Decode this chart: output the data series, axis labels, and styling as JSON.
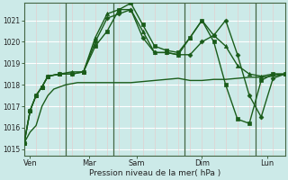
{
  "background_color": "#cceae8",
  "grid_color_white": "#ffffff",
  "grid_color_pink": "#e8c8c8",
  "line_color": "#1a5c1a",
  "xlabel": "Pression niveau de la mer( hPa )",
  "ylim": [
    1014.7,
    1021.8
  ],
  "yticks": [
    1015,
    1016,
    1017,
    1018,
    1019,
    1020,
    1021
  ],
  "xlim": [
    0,
    22
  ],
  "xtick_labels": [
    "Ven",
    "Mar",
    "Sam",
    "Dim",
    "Lun"
  ],
  "xtick_positions": [
    0.5,
    5.5,
    9.5,
    15.0,
    20.5
  ],
  "vline_positions": [
    3.5,
    7.5,
    13.5,
    19.5
  ],
  "lines": [
    {
      "x": [
        0,
        0.5,
        1,
        1.5,
        2,
        2.5,
        3,
        3.5,
        4,
        4.5,
        5,
        5.5,
        6,
        7,
        8,
        9,
        10,
        11,
        12,
        13,
        14,
        15,
        16,
        17,
        18,
        19,
        20,
        21,
        22
      ],
      "y": [
        1015.3,
        1015.8,
        1016.1,
        1017.0,
        1017.5,
        1017.8,
        1017.9,
        1018.0,
        1018.05,
        1018.1,
        1018.1,
        1018.1,
        1018.1,
        1018.1,
        1018.1,
        1018.1,
        1018.15,
        1018.2,
        1018.25,
        1018.3,
        1018.2,
        1018.2,
        1018.25,
        1018.25,
        1018.3,
        1018.35,
        1018.35,
        1018.4,
        1018.5
      ],
      "marker": null,
      "markersize": 0,
      "linewidth": 1.0,
      "linestyle": "-"
    },
    {
      "x": [
        0,
        0.5,
        1,
        1.5,
        2,
        3,
        4,
        5,
        6,
        7,
        8,
        9,
        10,
        11,
        12,
        13,
        14,
        15,
        16,
        17,
        18,
        19,
        20,
        21,
        22
      ],
      "y": [
        1015.3,
        1016.8,
        1017.5,
        1017.9,
        1018.4,
        1018.5,
        1018.5,
        1018.6,
        1020.0,
        1021.1,
        1021.3,
        1021.5,
        1020.2,
        1019.5,
        1019.5,
        1019.4,
        1019.4,
        1020.0,
        1020.3,
        1021.0,
        1019.4,
        1017.5,
        1016.5,
        1018.3,
        1018.5
      ],
      "marker": "D",
      "markersize": 2.5,
      "linewidth": 1.0,
      "linestyle": "-"
    },
    {
      "x": [
        0,
        0.5,
        1,
        1.5,
        2,
        3,
        4,
        5,
        6,
        7,
        8,
        9,
        10,
        11,
        12,
        13,
        14,
        15,
        16,
        17,
        18,
        19,
        20,
        21,
        22
      ],
      "y": [
        1015.3,
        1016.8,
        1017.5,
        1017.9,
        1018.4,
        1018.5,
        1018.6,
        1018.6,
        1020.2,
        1021.3,
        1021.5,
        1021.5,
        1020.5,
        1019.5,
        1019.5,
        1019.4,
        1020.2,
        1021.0,
        1020.3,
        1019.8,
        1018.9,
        1018.5,
        1018.4,
        1018.5,
        1018.5
      ],
      "marker": "^",
      "markersize": 3,
      "linewidth": 1.0,
      "linestyle": "-"
    },
    {
      "x": [
        0,
        0.5,
        1,
        1.5,
        2,
        3,
        4,
        5,
        6,
        7,
        8,
        9,
        10,
        11,
        12,
        13,
        14,
        15,
        16,
        17,
        18,
        19,
        20,
        21,
        22
      ],
      "y": [
        1015.3,
        1016.8,
        1017.5,
        1017.9,
        1018.4,
        1018.5,
        1018.5,
        1018.6,
        1019.8,
        1020.5,
        1021.5,
        1021.8,
        1020.8,
        1019.8,
        1019.6,
        1019.5,
        1020.2,
        1021.0,
        1020.0,
        1018.0,
        1016.4,
        1016.2,
        1018.2,
        1018.5,
        1018.5
      ],
      "marker": "s",
      "markersize": 2.5,
      "linewidth": 1.0,
      "linestyle": "-"
    }
  ]
}
